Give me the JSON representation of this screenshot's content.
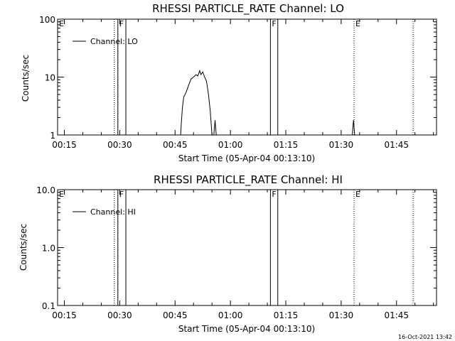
{
  "footer_timestamp": "16-Oct-2021 13:42",
  "colors": {
    "background": "#ffffff",
    "foreground": "#000000"
  },
  "chart_data": [
    {
      "type": "line",
      "title": "RHESSI PARTICLE_RATE Channel: LO",
      "xlabel": "Start Time (05-Apr-04 00:13:10)",
      "ylabel": "Counts/sec",
      "yscale": "log",
      "ylim": [
        1,
        100
      ],
      "yticks": [
        "1",
        "10",
        "100"
      ],
      "xlim": [
        "00:13:10",
        "01:55:50"
      ],
      "xticks": [
        "00:15",
        "00:30",
        "00:45",
        "01:00",
        "01:15",
        "01:30",
        "01:45"
      ],
      "grid": false,
      "legend": {
        "position": "top-left",
        "entries": [
          "Channel: LO"
        ]
      },
      "markers": [
        {
          "label": "E",
          "time": "00:13:10",
          "style": "dotted"
        },
        {
          "label": "",
          "time": "00:28:30",
          "style": "dotted"
        },
        {
          "label": "F",
          "time": "00:29:30",
          "style": "solid"
        },
        {
          "label": "",
          "time": "00:31:40",
          "style": "solid"
        },
        {
          "label": "F",
          "time": "01:10:50",
          "style": "solid"
        },
        {
          "label": "",
          "time": "01:12:50",
          "style": "solid"
        },
        {
          "label": "E",
          "time": "01:33:30",
          "style": "dotted"
        },
        {
          "label": "",
          "time": "01:49:30",
          "style": "dotted"
        }
      ],
      "series": [
        {
          "name": "Channel: LO",
          "segments": [
            [
              [
                "00:46:30",
                1.0
              ],
              [
                "00:46:40",
                1.5
              ],
              [
                "00:47:00",
                3.0
              ],
              [
                "00:47:20",
                4.5
              ],
              [
                "00:48:00",
                5.5
              ],
              [
                "00:48:40",
                7.2
              ],
              [
                "00:49:20",
                9.3
              ],
              [
                "00:50:00",
                10.0
              ],
              [
                "00:50:40",
                11.0
              ],
              [
                "00:51:10",
                10.5
              ],
              [
                "00:51:40",
                12.9
              ],
              [
                "00:52:00",
                11.0
              ],
              [
                "00:52:30",
                12.3
              ],
              [
                "00:53:00",
                10.0
              ],
              [
                "00:53:30",
                8.5
              ],
              [
                "00:54:00",
                5.3
              ],
              [
                "00:54:30",
                2.7
              ],
              [
                "00:55:00",
                1.0
              ]
            ],
            [
              [
                "00:55:30",
                1.0
              ],
              [
                "00:55:50",
                1.8
              ],
              [
                "00:56:10",
                1.0
              ]
            ],
            [
              [
                "01:33:00",
                1.0
              ],
              [
                "01:33:20",
                1.8
              ],
              [
                "01:33:40",
                1.0
              ]
            ]
          ]
        }
      ]
    },
    {
      "type": "line",
      "title": "RHESSI PARTICLE_RATE Channel: HI",
      "xlabel": "Start Time (05-Apr-04 00:13:10)",
      "ylabel": "Counts/sec",
      "yscale": "log",
      "ylim": [
        0.1,
        10.0
      ],
      "yticks": [
        "0.1",
        "1.0",
        "10.0"
      ],
      "xlim": [
        "00:13:10",
        "01:55:50"
      ],
      "xticks": [
        "00:15",
        "00:30",
        "00:45",
        "01:00",
        "01:15",
        "01:30",
        "01:45"
      ],
      "grid": false,
      "legend": {
        "position": "top-left",
        "entries": [
          "Channel: HI"
        ]
      },
      "markers": [
        {
          "label": "E",
          "time": "00:13:10",
          "style": "dotted"
        },
        {
          "label": "",
          "time": "00:28:30",
          "style": "dotted"
        },
        {
          "label": "F",
          "time": "00:29:30",
          "style": "solid"
        },
        {
          "label": "",
          "time": "00:31:40",
          "style": "solid"
        },
        {
          "label": "F",
          "time": "01:10:50",
          "style": "solid"
        },
        {
          "label": "",
          "time": "01:12:50",
          "style": "solid"
        },
        {
          "label": "E",
          "time": "01:33:30",
          "style": "dotted"
        },
        {
          "label": "",
          "time": "01:49:30",
          "style": "dotted"
        }
      ],
      "series": [
        {
          "name": "Channel: HI",
          "segments": []
        }
      ]
    }
  ]
}
